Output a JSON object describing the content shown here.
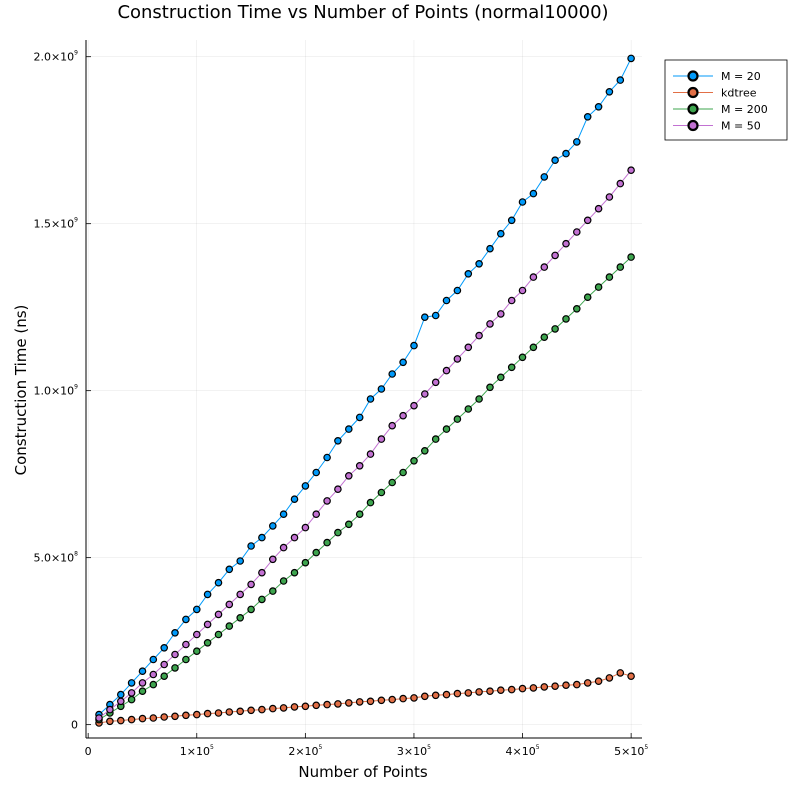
{
  "chart_data": {
    "type": "line",
    "title": "Construction Time vs Number of Points (normal10000)",
    "xlabel": "Number of Points",
    "ylabel": "Construction Time (ns)",
    "xlim": [
      -2000,
      510000
    ],
    "ylim": [
      -40000000,
      2050000000
    ],
    "grid": true,
    "legend_position": "top-right",
    "x_ticks": [
      {
        "value": 0,
        "label": "0",
        "exp": ""
      },
      {
        "value": 100000,
        "label": "1×10",
        "exp": "5"
      },
      {
        "value": 200000,
        "label": "2×10",
        "exp": "5"
      },
      {
        "value": 300000,
        "label": "3×10",
        "exp": "5"
      },
      {
        "value": 400000,
        "label": "4×10",
        "exp": "5"
      },
      {
        "value": 500000,
        "label": "5×10",
        "exp": "5"
      }
    ],
    "y_ticks": [
      {
        "value": 0,
        "label": "0",
        "exp": ""
      },
      {
        "value": 500000000,
        "label": "5.0×10",
        "exp": "8"
      },
      {
        "value": 1000000000,
        "label": "1.0×10",
        "exp": "9"
      },
      {
        "value": 1500000000,
        "label": "1.5×10",
        "exp": "9"
      },
      {
        "value": 2000000000,
        "label": "2.0×10",
        "exp": "9"
      }
    ],
    "x": [
      10000,
      20000,
      30000,
      40000,
      50000,
      60000,
      70000,
      80000,
      90000,
      100000,
      110000,
      120000,
      130000,
      140000,
      150000,
      160000,
      170000,
      180000,
      190000,
      200000,
      210000,
      220000,
      230000,
      240000,
      250000,
      260000,
      270000,
      280000,
      290000,
      300000,
      310000,
      320000,
      330000,
      340000,
      350000,
      360000,
      370000,
      380000,
      390000,
      400000,
      410000,
      420000,
      430000,
      440000,
      450000,
      460000,
      470000,
      480000,
      490000,
      500000
    ],
    "series": [
      {
        "name": "M = 20",
        "color": "#009AFA",
        "values": [
          30000000,
          60000000,
          90000000,
          125000000,
          160000000,
          195000000,
          230000000,
          275000000,
          315000000,
          345000000,
          390000000,
          425000000,
          465000000,
          490000000,
          535000000,
          560000000,
          595000000,
          630000000,
          675000000,
          715000000,
          755000000,
          800000000,
          850000000,
          885000000,
          920000000,
          975000000,
          1005000000,
          1050000000,
          1085000000,
          1135000000,
          1220000000,
          1225000000,
          1270000000,
          1300000000,
          1350000000,
          1380000000,
          1425000000,
          1470000000,
          1510000000,
          1565000000,
          1590000000,
          1640000000,
          1690000000,
          1710000000,
          1745000000,
          1820000000,
          1850000000,
          1895000000,
          1930000000,
          1995000000
        ]
      },
      {
        "name": "kdtree",
        "color": "#E26F46",
        "values": [
          5000000,
          10000000,
          12000000,
          15000000,
          18000000,
          20000000,
          23000000,
          25000000,
          28000000,
          30000000,
          33000000,
          35000000,
          38000000,
          40000000,
          43000000,
          45000000,
          48000000,
          50000000,
          53000000,
          55000000,
          58000000,
          60000000,
          62000000,
          65000000,
          68000000,
          70000000,
          73000000,
          75000000,
          78000000,
          80000000,
          85000000,
          88000000,
          90000000,
          93000000,
          95000000,
          98000000,
          100000000,
          103000000,
          105000000,
          108000000,
          110000000,
          113000000,
          115000000,
          118000000,
          120000000,
          125000000,
          130000000,
          140000000,
          155000000,
          145000000
        ]
      },
      {
        "name": "M = 200",
        "color": "#3DA44E",
        "values": [
          15000000,
          35000000,
          55000000,
          75000000,
          100000000,
          120000000,
          145000000,
          170000000,
          195000000,
          220000000,
          245000000,
          270000000,
          295000000,
          320000000,
          345000000,
          375000000,
          400000000,
          430000000,
          455000000,
          485000000,
          515000000,
          545000000,
          575000000,
          600000000,
          630000000,
          665000000,
          695000000,
          725000000,
          755000000,
          790000000,
          820000000,
          855000000,
          885000000,
          915000000,
          945000000,
          975000000,
          1010000000,
          1040000000,
          1070000000,
          1100000000,
          1130000000,
          1160000000,
          1185000000,
          1215000000,
          1245000000,
          1280000000,
          1310000000,
          1340000000,
          1370000000,
          1400000000
        ]
      },
      {
        "name": "M = 50",
        "color": "#C271D2",
        "values": [
          20000000,
          45000000,
          70000000,
          95000000,
          125000000,
          150000000,
          180000000,
          210000000,
          240000000,
          270000000,
          300000000,
          330000000,
          360000000,
          390000000,
          420000000,
          455000000,
          495000000,
          530000000,
          560000000,
          590000000,
          630000000,
          670000000,
          705000000,
          745000000,
          775000000,
          810000000,
          855000000,
          895000000,
          925000000,
          955000000,
          990000000,
          1025000000,
          1060000000,
          1095000000,
          1130000000,
          1165000000,
          1200000000,
          1230000000,
          1270000000,
          1300000000,
          1340000000,
          1370000000,
          1405000000,
          1440000000,
          1475000000,
          1510000000,
          1545000000,
          1580000000,
          1620000000,
          1660000000
        ]
      }
    ]
  }
}
